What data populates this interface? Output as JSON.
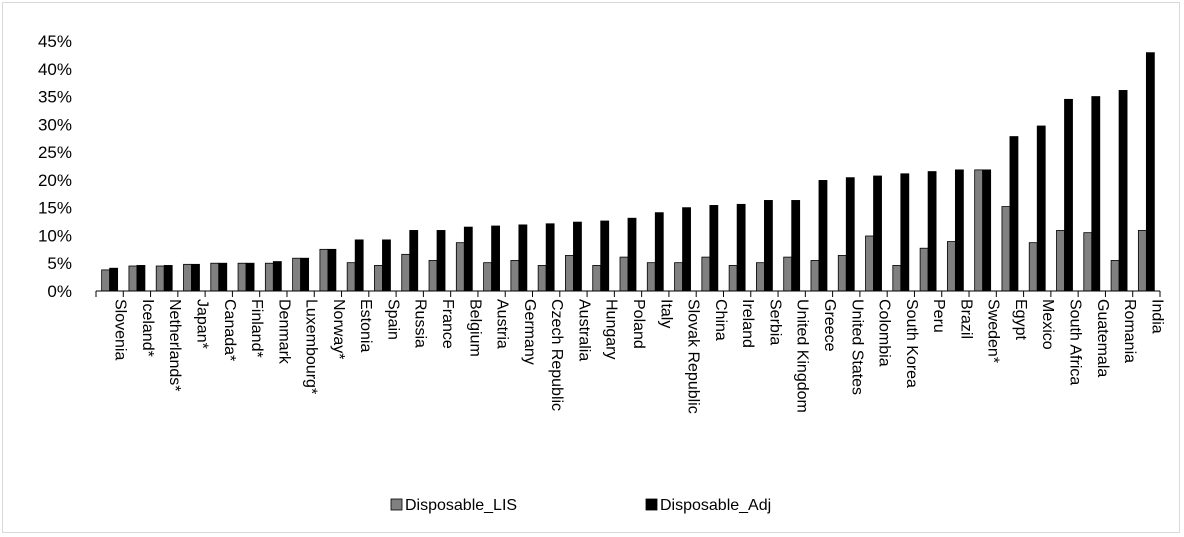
{
  "chart_data": {
    "type": "bar",
    "title": "",
    "xlabel": "",
    "ylabel": "",
    "ylim": [
      0,
      45
    ],
    "y_ticks": [
      "0%",
      "5%",
      "10%",
      "15%",
      "20%",
      "25%",
      "30%",
      "35%",
      "40%",
      "45%"
    ],
    "y_tick_values": [
      0,
      5,
      10,
      15,
      20,
      25,
      30,
      35,
      40,
      45
    ],
    "grid": false,
    "legend_position": "bottom",
    "categories": [
      "Slovenia",
      "Iceland*",
      "Netherlands*",
      "Japan*",
      "Canada*",
      "Finland*",
      "Denmark",
      "Luxembourg*",
      "Norway*",
      "Estonia",
      "Spain",
      "Russia",
      "France",
      "Belgium",
      "Austria",
      "Germany",
      "Czech Republic",
      "Australia",
      "Hungary",
      "Poland",
      "Italy",
      "Slovak Republic",
      "China",
      "Ireland",
      "Serbia",
      "United Kingdom",
      "Greece",
      "United States",
      "Colombia",
      "South Korea",
      "Peru",
      "Brazil",
      "Sweden*",
      "Egypt",
      "Mexico",
      "South Africa",
      "Guatemala",
      "Romania",
      "India"
    ],
    "series": [
      {
        "name": "Disposable_LIS",
        "color": "#808080",
        "values": [
          3.8,
          4.5,
          4.5,
          4.8,
          5.0,
          5.0,
          5.0,
          5.9,
          7.5,
          5.1,
          4.6,
          6.6,
          5.5,
          8.7,
          5.1,
          5.5,
          4.6,
          6.4,
          4.6,
          6.1,
          5.1,
          5.1,
          6.1,
          4.6,
          5.1,
          6.1,
          5.5,
          6.4,
          9.9,
          4.6,
          7.7,
          8.9,
          21.8,
          15.2,
          8.7,
          10.9,
          10.5,
          5.5,
          10.9
        ]
      },
      {
        "name": "Disposable_Adj",
        "color": "#000000",
        "values": [
          4.1,
          4.6,
          4.6,
          4.8,
          5.0,
          5.0,
          5.3,
          5.9,
          7.5,
          9.2,
          9.2,
          10.9,
          10.9,
          11.5,
          11.7,
          11.9,
          12.1,
          12.4,
          12.6,
          13.1,
          14.1,
          15.0,
          15.4,
          15.6,
          16.3,
          16.3,
          19.9,
          20.4,
          20.7,
          21.1,
          21.5,
          21.8,
          21.8,
          27.8,
          29.7,
          34.5,
          35.0,
          36.1,
          42.9
        ]
      }
    ]
  }
}
